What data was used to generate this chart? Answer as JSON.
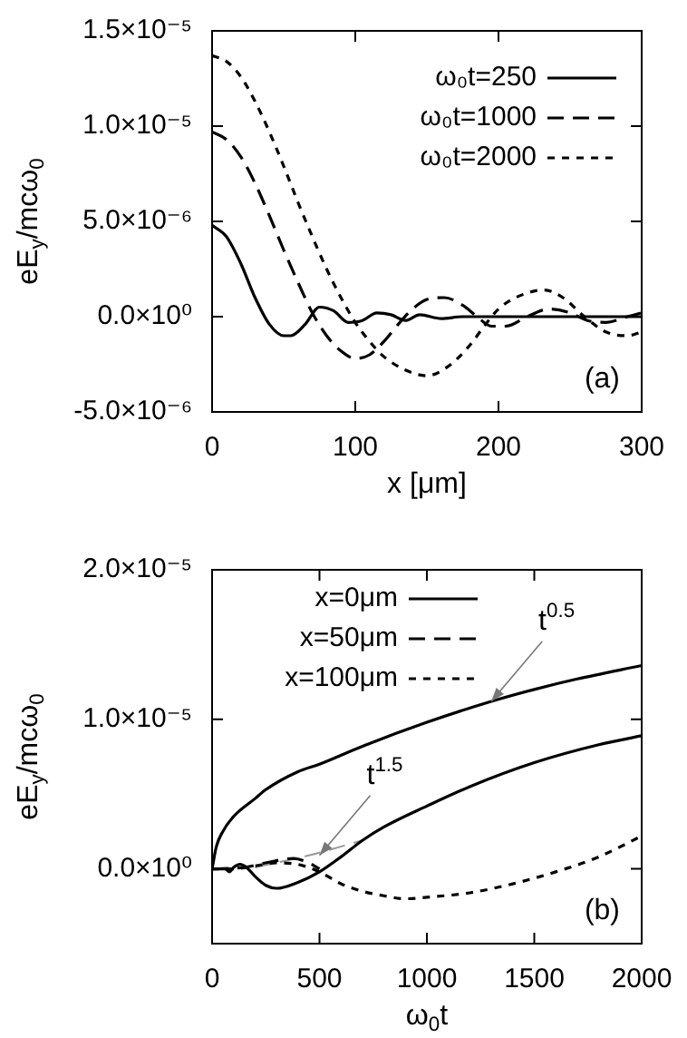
{
  "chart_data": [
    {
      "type": "line",
      "xlabel": "x [μm]",
      "ylabel": "eE$_{y}$/mcω$_{0}$",
      "xlim": [
        0,
        300
      ],
      "xticks": [
        0,
        100,
        200,
        300
      ],
      "ylim": [
        -5e-06,
        1.5e-05
      ],
      "yticks": [
        {
          "value": -5e-06,
          "label": "-5.0×10⁻⁶"
        },
        {
          "value": 0,
          "label": "0.0×10⁰"
        },
        {
          "value": 5e-06,
          "label": "5.0×10⁻⁶"
        },
        {
          "value": 1e-05,
          "label": "1.0×10⁻⁵"
        },
        {
          "value": 1.5e-05,
          "label": "1.5×10⁻⁵"
        }
      ],
      "grid": false,
      "legend": "top right",
      "marker": "none",
      "annotations": [
        "(a)"
      ],
      "series": [
        {
          "name": "ω₀t=250",
          "color": "#000000",
          "line_style": "solid",
          "x": [
            0,
            10,
            20,
            30,
            40,
            50,
            55,
            65,
            75,
            85,
            95,
            105,
            115,
            125,
            135,
            145,
            160,
            175,
            200,
            300
          ],
          "values": [
            4.8e-06,
            4.2e-06,
            2.8e-06,
            1e-06,
            -4e-07,
            -1e-06,
            -1e-06,
            -4e-07,
            5e-07,
            3e-07,
            -3e-07,
            -2e-07,
            2e-07,
            1e-07,
            -2e-07,
            1e-07,
            -1e-07,
            0,
            0,
            0
          ]
        },
        {
          "name": "ω₀t=1000",
          "color": "#000000",
          "line_style": "dashed",
          "x": [
            0,
            10,
            20,
            30,
            40,
            50,
            60,
            70,
            80,
            90,
            100,
            110,
            120,
            130,
            140,
            150,
            162,
            175,
            185,
            195,
            205,
            220,
            235,
            250,
            262,
            275,
            290,
            300
          ],
          "values": [
            9.7e-06,
            9.3e-06,
            8.4e-06,
            7e-06,
            5.3e-06,
            3.5e-06,
            1.8e-06,
            2e-07,
            -1e-06,
            -1.8e-06,
            -2.2e-06,
            -2e-06,
            -1.3e-06,
            -4e-07,
            4e-07,
            9e-07,
            1e-06,
            6e-07,
            0,
            -5e-07,
            -5e-07,
            0,
            4e-07,
            2e-07,
            -2e-07,
            -3e-07,
            0,
            2e-07
          ]
        },
        {
          "name": "ω₀t=2000",
          "color": "#000000",
          "line_style": "dotted",
          "x": [
            0,
            10,
            20,
            30,
            40,
            50,
            60,
            70,
            80,
            90,
            100,
            110,
            120,
            135,
            150,
            165,
            180,
            190,
            200,
            215,
            232,
            245,
            260,
            275,
            290,
            300
          ],
          "values": [
            1.37e-05,
            1.34e-05,
            1.26e-05,
            1.13e-05,
            9.7e-06,
            7.9e-06,
            6e-06,
            4.2e-06,
            2.5e-06,
            1e-06,
            -3e-07,
            -1.3e-06,
            -2.1e-06,
            -2.8e-06,
            -3.1e-06,
            -2.6e-06,
            -1.5e-06,
            -5e-07,
            4e-07,
            1.1e-06,
            1.4e-06,
            1e-06,
            0,
            -8e-07,
            -1e-06,
            -8e-07
          ]
        }
      ]
    },
    {
      "type": "line",
      "xlabel": "ω$_{0}$t",
      "ylabel": "eE$_{y}$/mcω$_{0}$",
      "xlim": [
        0,
        2000
      ],
      "xticks": [
        0,
        500,
        1000,
        1500,
        2000
      ],
      "ylim": [
        -5e-06,
        2e-05
      ],
      "yticks": [
        {
          "value": 0,
          "label": "0.0×10⁰"
        },
        {
          "value": 1e-05,
          "label": "1.0×10⁻⁵"
        },
        {
          "value": 2e-05,
          "label": "2.0×10⁻⁵"
        }
      ],
      "grid": false,
      "legend": "top",
      "marker": "none",
      "annotations": [
        {
          "text": "t$^{0.5}$",
          "x": 1300,
          "y": 1.12e-05
        },
        {
          "text": "t$^{1.5}$",
          "x": 500,
          "y": 9e-07
        },
        "(b)"
      ],
      "series": [
        {
          "name": "x=0μm",
          "color": "#000000",
          "line_style": "solid",
          "x": [
            0,
            20,
            50,
            100,
            200,
            250,
            400,
            500,
            700,
            1000,
            1300,
            1500,
            1700,
            2000
          ],
          "values": [
            0,
            1.5e-06,
            2.5e-06,
            3.5e-06,
            4.7e-06,
            5.3e-06,
            6.5e-06,
            7e-06,
            8.2e-06,
            9.8e-06,
            1.12e-05,
            1.2e-05,
            1.27e-05,
            1.36e-05
          ]
        },
        {
          "name": "x=50μm",
          "color": "#000000",
          "line_style": "dashed",
          "x": [
            0,
            150,
            250,
            380,
            450,
            500
          ],
          "values": [
            0,
            1e-07,
            4e-07,
            7e-07,
            4e-07,
            0
          ]
        },
        {
          "name": "x=100μm",
          "color": "#000000",
          "line_style": "dotted",
          "x": [
            0,
            100,
            200,
            300,
            400,
            500,
            600,
            700,
            800,
            900,
            1000,
            1200,
            1400,
            1600,
            1800,
            2000
          ],
          "values": [
            0,
            0,
            2e-07,
            4e-07,
            3e-07,
            -2e-07,
            -1e-06,
            -1.5e-06,
            -1.8e-06,
            -2e-06,
            -1.9e-06,
            -1.6e-06,
            -1e-06,
            -2e-07,
            8e-07,
            2.2e-06
          ]
        },
        {
          "color": "#000000",
          "line_style": "solid",
          "x": [
            0,
            60,
            80,
            100,
            130,
            160,
            200,
            250,
            300,
            400,
            500,
            600,
            700,
            800,
            1000,
            1200,
            1500,
            1800,
            2000
          ],
          "values": [
            0,
            0,
            -2e-07,
            1e-07,
            3e-07,
            1e-07,
            -5e-07,
            -1.1e-06,
            -1.3e-06,
            -9e-07,
            -2e-07,
            8e-07,
            1.9e-06,
            2.8e-06,
            4.2e-06,
            5.5e-06,
            7.1e-06,
            8.3e-06,
            8.9e-06
          ]
        },
        {
          "color": "#999999",
          "line_style": "dashed",
          "x": [
            200,
            450,
            700
          ],
          "values": [
            1e-07,
            9e-07,
            1.9e-06
          ]
        }
      ]
    }
  ]
}
